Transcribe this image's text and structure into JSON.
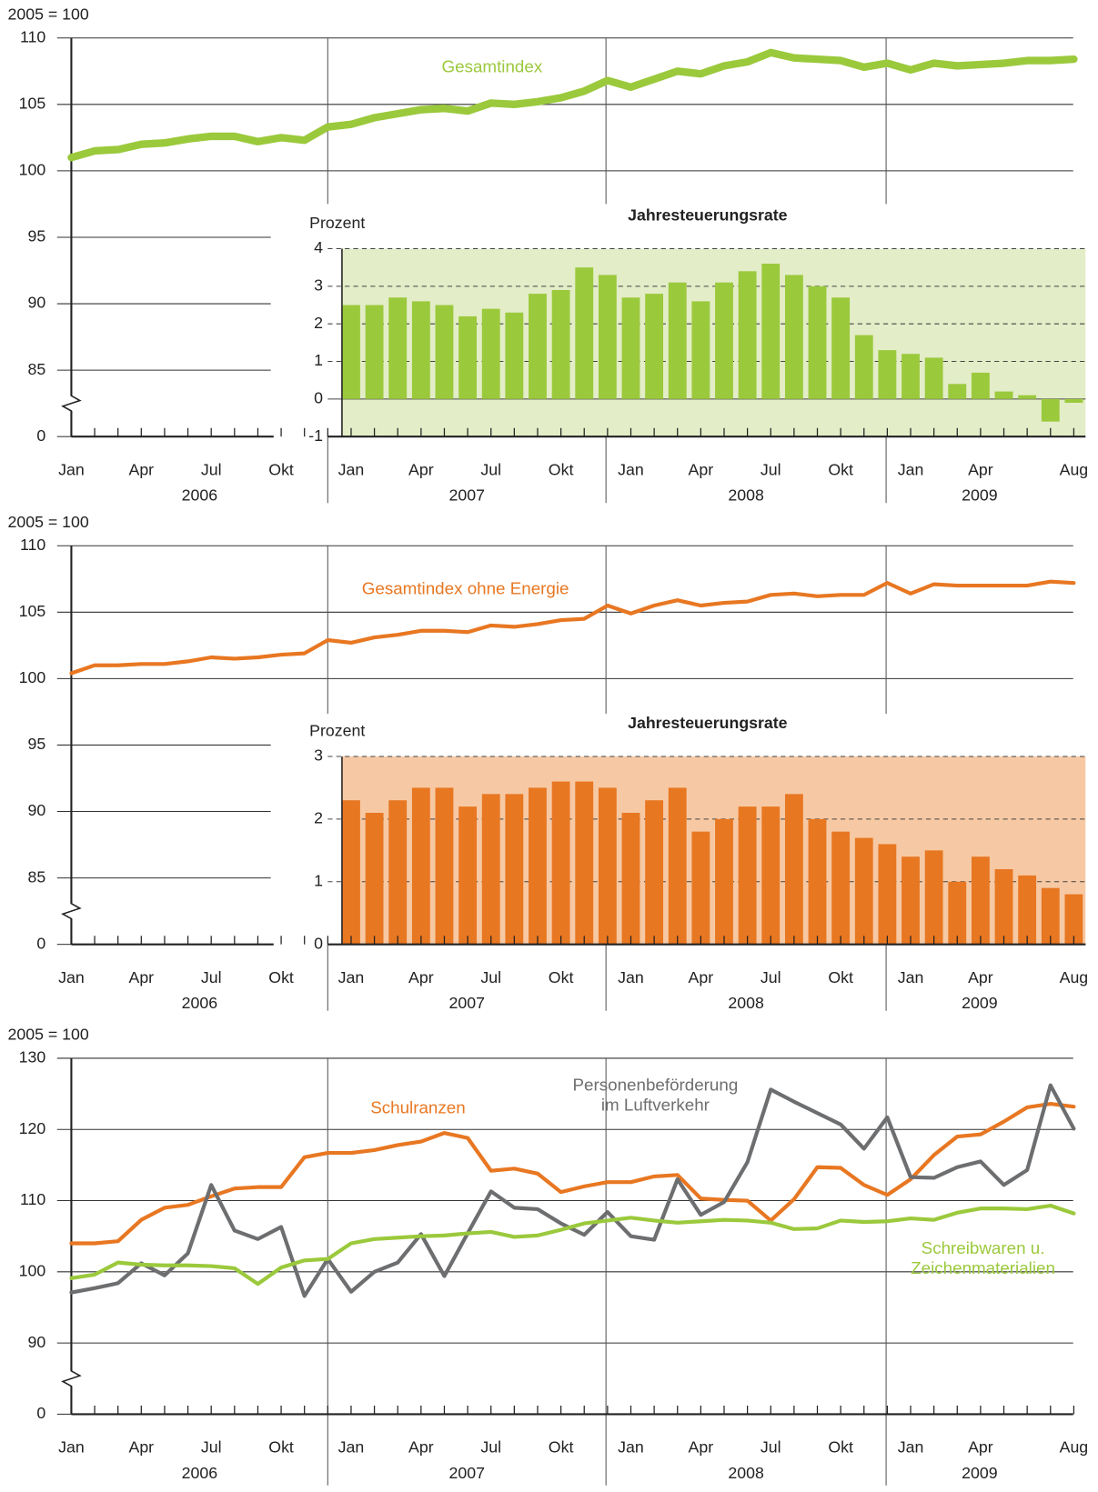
{
  "chart_data": [
    {
      "type": "line",
      "y_unit": "2005 = 100",
      "axis_break": true,
      "grid": true,
      "categories": [
        "Jan",
        null,
        null,
        "Apr",
        null,
        null,
        "Jul",
        null,
        null,
        "Okt",
        null,
        null,
        "Jan",
        null,
        null,
        "Apr",
        null,
        null,
        "Jul",
        null,
        null,
        "Okt",
        null,
        null,
        "Jan",
        null,
        null,
        "Apr",
        null,
        null,
        "Jul",
        null,
        null,
        "Okt",
        null,
        null,
        "Jan",
        null,
        null,
        "Apr",
        null,
        null,
        null,
        "Aug"
      ],
      "years": [
        "2006",
        "2007",
        "2008",
        "2009"
      ],
      "ylim": [
        85,
        110
      ],
      "yticks": [
        0,
        85,
        90,
        95,
        100,
        105,
        110
      ],
      "series": [
        {
          "name": "Gesamtindex",
          "color": "#9bc93c",
          "values": [
            101.0,
            101.5,
            101.6,
            102.0,
            102.1,
            102.4,
            102.6,
            102.6,
            102.2,
            102.5,
            102.3,
            103.3,
            103.5,
            104.0,
            104.3,
            104.6,
            104.7,
            104.5,
            105.1,
            105.0,
            105.2,
            105.5,
            106.0,
            106.8,
            106.3,
            106.9,
            107.5,
            107.3,
            107.9,
            108.2,
            108.9,
            108.5,
            108.4,
            108.3,
            107.8,
            108.1,
            107.6,
            108.1,
            107.9,
            108.0,
            108.1,
            108.3,
            108.3,
            108.4
          ]
        }
      ],
      "inset": {
        "type": "bar",
        "title": "Jahresteuerungsrate",
        "ylabel": "Prozent",
        "color": "#9bc93c",
        "background": "#e3edc7",
        "ylim": [
          -1,
          4
        ],
        "yticks": [
          -1,
          0,
          1,
          2,
          3,
          4
        ],
        "values": [
          2.5,
          2.5,
          2.7,
          2.6,
          2.5,
          2.2,
          2.4,
          2.3,
          2.8,
          2.9,
          3.5,
          3.3,
          2.7,
          2.8,
          3.1,
          2.6,
          3.1,
          3.4,
          3.6,
          3.3,
          3.0,
          2.7,
          1.7,
          1.3,
          1.2,
          1.1,
          0.4,
          0.7,
          0.2,
          0.1,
          -0.6,
          -0.1
        ]
      }
    },
    {
      "type": "line",
      "y_unit": "2005 = 100",
      "axis_break": true,
      "grid": true,
      "categories": [
        "Jan",
        null,
        null,
        "Apr",
        null,
        null,
        "Jul",
        null,
        null,
        "Okt",
        null,
        null,
        "Jan",
        null,
        null,
        "Apr",
        null,
        null,
        "Jul",
        null,
        null,
        "Okt",
        null,
        null,
        "Jan",
        null,
        null,
        "Apr",
        null,
        null,
        "Jul",
        null,
        null,
        "Okt",
        null,
        null,
        "Jan",
        null,
        null,
        "Apr",
        null,
        null,
        null,
        "Aug"
      ],
      "years": [
        "2006",
        "2007",
        "2008",
        "2009"
      ],
      "ylim": [
        85,
        110
      ],
      "yticks": [
        0,
        85,
        90,
        95,
        100,
        105,
        110
      ],
      "series": [
        {
          "name": "Gesamtindex ohne Energie",
          "color": "#e87722",
          "values": [
            100.4,
            101.0,
            101.0,
            101.1,
            101.1,
            101.3,
            101.6,
            101.5,
            101.6,
            101.8,
            101.9,
            102.9,
            102.7,
            103.1,
            103.3,
            103.6,
            103.6,
            103.5,
            104.0,
            103.9,
            104.1,
            104.4,
            104.5,
            105.5,
            104.9,
            105.5,
            105.9,
            105.5,
            105.7,
            105.8,
            106.3,
            106.4,
            106.2,
            106.3,
            106.3,
            107.2,
            106.4,
            107.1,
            107.0,
            107.0,
            107.0,
            107.0,
            107.3,
            107.2
          ]
        }
      ],
      "inset": {
        "type": "bar",
        "title": "Jahresteuerungsrate",
        "ylabel": "Prozent",
        "color": "#e87722",
        "background": "#f6c9a4",
        "ylim": [
          0,
          3
        ],
        "yticks": [
          0,
          1,
          2,
          3
        ],
        "values": [
          2.3,
          2.1,
          2.3,
          2.5,
          2.5,
          2.2,
          2.4,
          2.4,
          2.5,
          2.6,
          2.6,
          2.5,
          2.1,
          2.3,
          2.5,
          1.8,
          2.0,
          2.2,
          2.2,
          2.4,
          2.0,
          1.8,
          1.7,
          1.6,
          1.4,
          1.5,
          1.0,
          1.4,
          1.2,
          1.1,
          0.9,
          0.8
        ]
      }
    },
    {
      "type": "line",
      "y_unit": "2005 = 100",
      "axis_break": true,
      "grid": true,
      "categories": [
        "Jan",
        null,
        null,
        "Apr",
        null,
        null,
        "Jul",
        null,
        null,
        "Okt",
        null,
        null,
        "Jan",
        null,
        null,
        "Apr",
        null,
        null,
        "Jul",
        null,
        null,
        "Okt",
        null,
        null,
        "Jan",
        null,
        null,
        "Apr",
        null,
        null,
        "Jul",
        null,
        null,
        "Okt",
        null,
        null,
        "Jan",
        null,
        null,
        "Apr",
        null,
        null,
        null,
        "Aug"
      ],
      "years": [
        "2006",
        "2007",
        "2008",
        "2009"
      ],
      "ylim": [
        90,
        130
      ],
      "yticks": [
        0,
        90,
        100,
        110,
        120,
        130
      ],
      "series": [
        {
          "name": "Schulranzen",
          "color": "#e87722",
          "values": [
            104.0,
            104.0,
            104.3,
            107.3,
            109.0,
            109.4,
            110.6,
            111.7,
            111.9,
            111.9,
            116.1,
            116.7,
            116.7,
            117.1,
            117.8,
            118.3,
            119.5,
            118.8,
            114.2,
            114.5,
            113.8,
            111.2,
            112.0,
            112.6,
            112.6,
            113.4,
            113.6,
            110.3,
            110.1,
            110.0,
            107.2,
            110.2,
            114.7,
            114.6,
            112.2,
            110.8,
            113.0,
            116.4,
            119.0,
            119.3,
            121.1,
            123.1,
            123.6,
            123.2
          ]
        },
        {
          "name": "Personenbeförderung im Luftverkehr",
          "color": "#6d6e70",
          "values": [
            97.1,
            97.7,
            98.4,
            101.2,
            99.5,
            102.6,
            112.2,
            105.8,
            104.6,
            106.3,
            96.6,
            101.8,
            97.2,
            100.0,
            101.3,
            105.3,
            99.4,
            105.4,
            111.3,
            109.0,
            108.8,
            106.8,
            105.2,
            108.4,
            105.0,
            104.5,
            113.0,
            108.0,
            109.8,
            115.4,
            125.6,
            123.9,
            122.3,
            120.7,
            117.3,
            121.7,
            113.3,
            113.2,
            114.7,
            115.5,
            112.2,
            114.3,
            126.2,
            120.1
          ]
        },
        {
          "name": "Schreibwaren u. Zeichenmaterialien",
          "color": "#9bc93c",
          "values": [
            99.1,
            99.6,
            101.3,
            101.0,
            100.9,
            100.9,
            100.8,
            100.5,
            98.3,
            100.6,
            101.6,
            101.8,
            104.0,
            104.6,
            104.8,
            105.0,
            105.1,
            105.4,
            105.6,
            104.9,
            105.1,
            105.9,
            106.8,
            107.2,
            107.6,
            107.2,
            106.9,
            107.1,
            107.3,
            107.2,
            106.9,
            106.0,
            106.1,
            107.2,
            107.0,
            107.1,
            107.5,
            107.3,
            108.3,
            108.9,
            108.9,
            108.8,
            109.3,
            108.2
          ]
        }
      ]
    }
  ]
}
